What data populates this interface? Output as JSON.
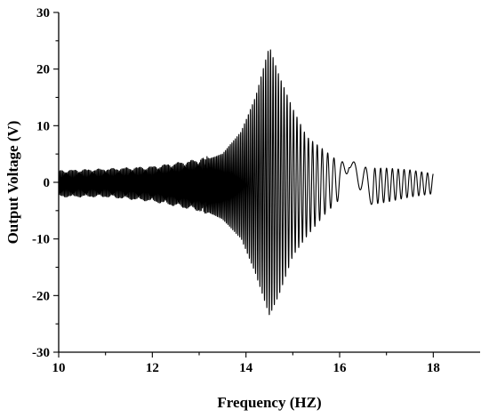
{
  "chart_data": {
    "type": "line",
    "title": "",
    "xlabel": "Frequency (HZ)",
    "ylabel": "Output Voltage (V)",
    "xlim": [
      10,
      19
    ],
    "ylim": [
      -30,
      30
    ],
    "xticks": [
      10,
      12,
      14,
      16,
      18
    ],
    "yticks": [
      -30,
      -20,
      -10,
      0,
      10,
      20,
      30
    ],
    "grid": false,
    "legend": "none",
    "series": [
      {
        "color": "#000000",
        "envelope_points": [
          {
            "x": 10.0,
            "upper": 1.5,
            "lower": -2.0
          },
          {
            "x": 11.0,
            "upper": 1.8,
            "lower": -2.0
          },
          {
            "x": 12.0,
            "upper": 2.2,
            "lower": -2.8
          },
          {
            "x": 13.0,
            "upper": 3.5,
            "lower": -4.5
          },
          {
            "x": 13.5,
            "upper": 5.0,
            "lower": -6.5
          },
          {
            "x": 13.9,
            "upper": 9.0,
            "lower": -10.0
          },
          {
            "x": 14.2,
            "upper": 15.0,
            "lower": -16.0
          },
          {
            "x": 14.5,
            "upper": 24.0,
            "lower": -23.5
          },
          {
            "x": 14.7,
            "upper": 19.0,
            "lower": -20.0
          },
          {
            "x": 15.0,
            "upper": 13.0,
            "lower": -13.0
          },
          {
            "x": 15.3,
            "upper": 8.0,
            "lower": -9.5
          },
          {
            "x": 15.7,
            "upper": 5.5,
            "lower": -5.5
          },
          {
            "x": 16.0,
            "upper": 3.5,
            "lower": -3.0
          },
          {
            "x": 16.2,
            "upper": 4.0,
            "lower": 2.5
          },
          {
            "x": 16.6,
            "upper": 2.5,
            "lower": -4.0
          },
          {
            "x": 17.0,
            "upper": 2.5,
            "lower": -3.5
          },
          {
            "x": 17.5,
            "upper": 2.2,
            "lower": -2.6
          },
          {
            "x": 18.0,
            "upper": 1.5,
            "lower": -2.0
          }
        ]
      }
    ]
  }
}
